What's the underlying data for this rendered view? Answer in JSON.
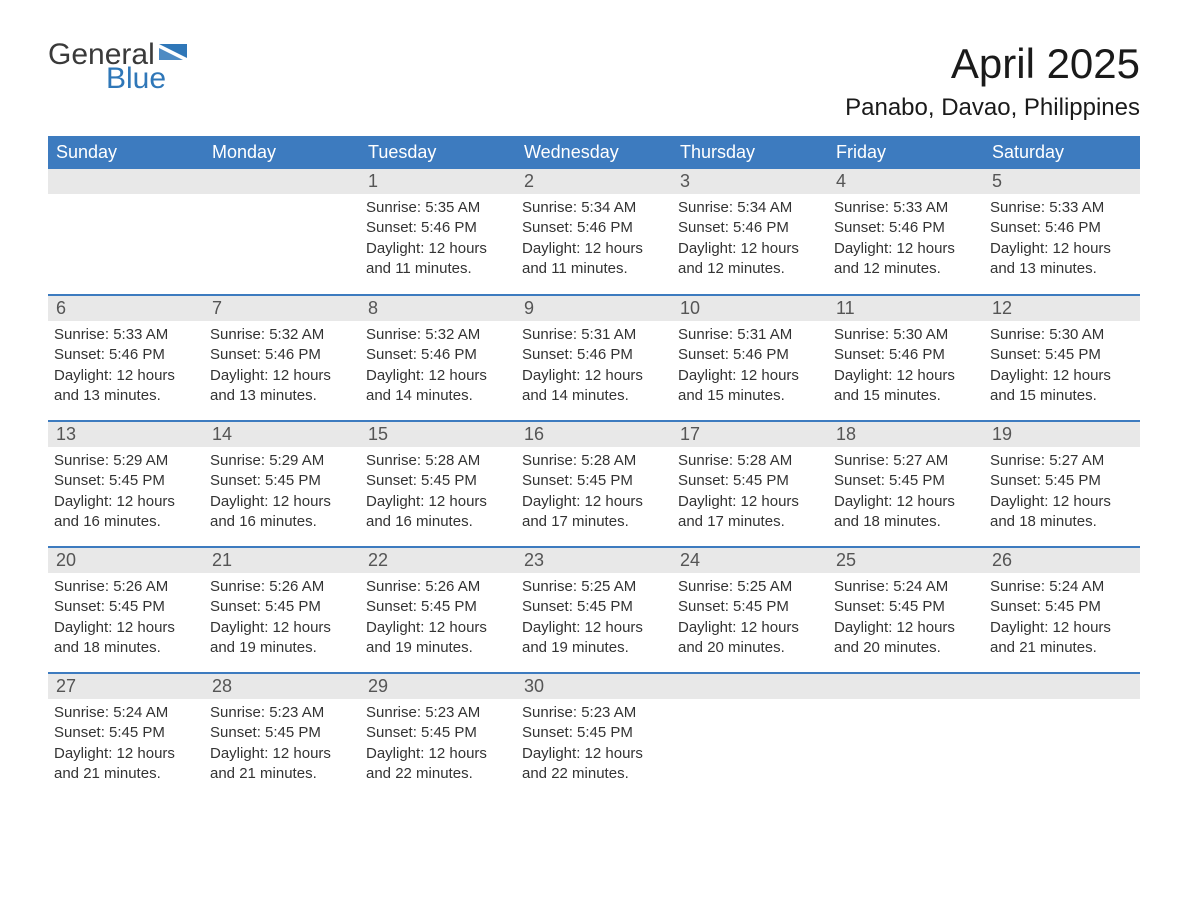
{
  "logo": {
    "word1": "General",
    "word2": "Blue",
    "text_color1": "#3a3a3a",
    "text_color2": "#2f77b8",
    "flag_color": "#2f77b8"
  },
  "title": "April 2025",
  "location": "Panabo, Davao, Philippines",
  "colors": {
    "header_bg": "#3d7bbf",
    "header_text": "#ffffff",
    "daynum_bg": "#e8e8e8",
    "border": "#3d7bbf",
    "body_text": "#333333",
    "page_bg": "#ffffff"
  },
  "day_headers": [
    "Sunday",
    "Monday",
    "Tuesday",
    "Wednesday",
    "Thursday",
    "Friday",
    "Saturday"
  ],
  "weeks": [
    [
      null,
      null,
      {
        "n": "1",
        "sunrise": "5:35 AM",
        "sunset": "5:46 PM",
        "daylight": "12 hours and 11 minutes."
      },
      {
        "n": "2",
        "sunrise": "5:34 AM",
        "sunset": "5:46 PM",
        "daylight": "12 hours and 11 minutes."
      },
      {
        "n": "3",
        "sunrise": "5:34 AM",
        "sunset": "5:46 PM",
        "daylight": "12 hours and 12 minutes."
      },
      {
        "n": "4",
        "sunrise": "5:33 AM",
        "sunset": "5:46 PM",
        "daylight": "12 hours and 12 minutes."
      },
      {
        "n": "5",
        "sunrise": "5:33 AM",
        "sunset": "5:46 PM",
        "daylight": "12 hours and 13 minutes."
      }
    ],
    [
      {
        "n": "6",
        "sunrise": "5:33 AM",
        "sunset": "5:46 PM",
        "daylight": "12 hours and 13 minutes."
      },
      {
        "n": "7",
        "sunrise": "5:32 AM",
        "sunset": "5:46 PM",
        "daylight": "12 hours and 13 minutes."
      },
      {
        "n": "8",
        "sunrise": "5:32 AM",
        "sunset": "5:46 PM",
        "daylight": "12 hours and 14 minutes."
      },
      {
        "n": "9",
        "sunrise": "5:31 AM",
        "sunset": "5:46 PM",
        "daylight": "12 hours and 14 minutes."
      },
      {
        "n": "10",
        "sunrise": "5:31 AM",
        "sunset": "5:46 PM",
        "daylight": "12 hours and 15 minutes."
      },
      {
        "n": "11",
        "sunrise": "5:30 AM",
        "sunset": "5:46 PM",
        "daylight": "12 hours and 15 minutes."
      },
      {
        "n": "12",
        "sunrise": "5:30 AM",
        "sunset": "5:45 PM",
        "daylight": "12 hours and 15 minutes."
      }
    ],
    [
      {
        "n": "13",
        "sunrise": "5:29 AM",
        "sunset": "5:45 PM",
        "daylight": "12 hours and 16 minutes."
      },
      {
        "n": "14",
        "sunrise": "5:29 AM",
        "sunset": "5:45 PM",
        "daylight": "12 hours and 16 minutes."
      },
      {
        "n": "15",
        "sunrise": "5:28 AM",
        "sunset": "5:45 PM",
        "daylight": "12 hours and 16 minutes."
      },
      {
        "n": "16",
        "sunrise": "5:28 AM",
        "sunset": "5:45 PM",
        "daylight": "12 hours and 17 minutes."
      },
      {
        "n": "17",
        "sunrise": "5:28 AM",
        "sunset": "5:45 PM",
        "daylight": "12 hours and 17 minutes."
      },
      {
        "n": "18",
        "sunrise": "5:27 AM",
        "sunset": "5:45 PM",
        "daylight": "12 hours and 18 minutes."
      },
      {
        "n": "19",
        "sunrise": "5:27 AM",
        "sunset": "5:45 PM",
        "daylight": "12 hours and 18 minutes."
      }
    ],
    [
      {
        "n": "20",
        "sunrise": "5:26 AM",
        "sunset": "5:45 PM",
        "daylight": "12 hours and 18 minutes."
      },
      {
        "n": "21",
        "sunrise": "5:26 AM",
        "sunset": "5:45 PM",
        "daylight": "12 hours and 19 minutes."
      },
      {
        "n": "22",
        "sunrise": "5:26 AM",
        "sunset": "5:45 PM",
        "daylight": "12 hours and 19 minutes."
      },
      {
        "n": "23",
        "sunrise": "5:25 AM",
        "sunset": "5:45 PM",
        "daylight": "12 hours and 19 minutes."
      },
      {
        "n": "24",
        "sunrise": "5:25 AM",
        "sunset": "5:45 PM",
        "daylight": "12 hours and 20 minutes."
      },
      {
        "n": "25",
        "sunrise": "5:24 AM",
        "sunset": "5:45 PM",
        "daylight": "12 hours and 20 minutes."
      },
      {
        "n": "26",
        "sunrise": "5:24 AM",
        "sunset": "5:45 PM",
        "daylight": "12 hours and 21 minutes."
      }
    ],
    [
      {
        "n": "27",
        "sunrise": "5:24 AM",
        "sunset": "5:45 PM",
        "daylight": "12 hours and 21 minutes."
      },
      {
        "n": "28",
        "sunrise": "5:23 AM",
        "sunset": "5:45 PM",
        "daylight": "12 hours and 21 minutes."
      },
      {
        "n": "29",
        "sunrise": "5:23 AM",
        "sunset": "5:45 PM",
        "daylight": "12 hours and 22 minutes."
      },
      {
        "n": "30",
        "sunrise": "5:23 AM",
        "sunset": "5:45 PM",
        "daylight": "12 hours and 22 minutes."
      },
      null,
      null,
      null
    ]
  ],
  "labels": {
    "sunrise": "Sunrise: ",
    "sunset": "Sunset: ",
    "daylight": "Daylight: "
  }
}
